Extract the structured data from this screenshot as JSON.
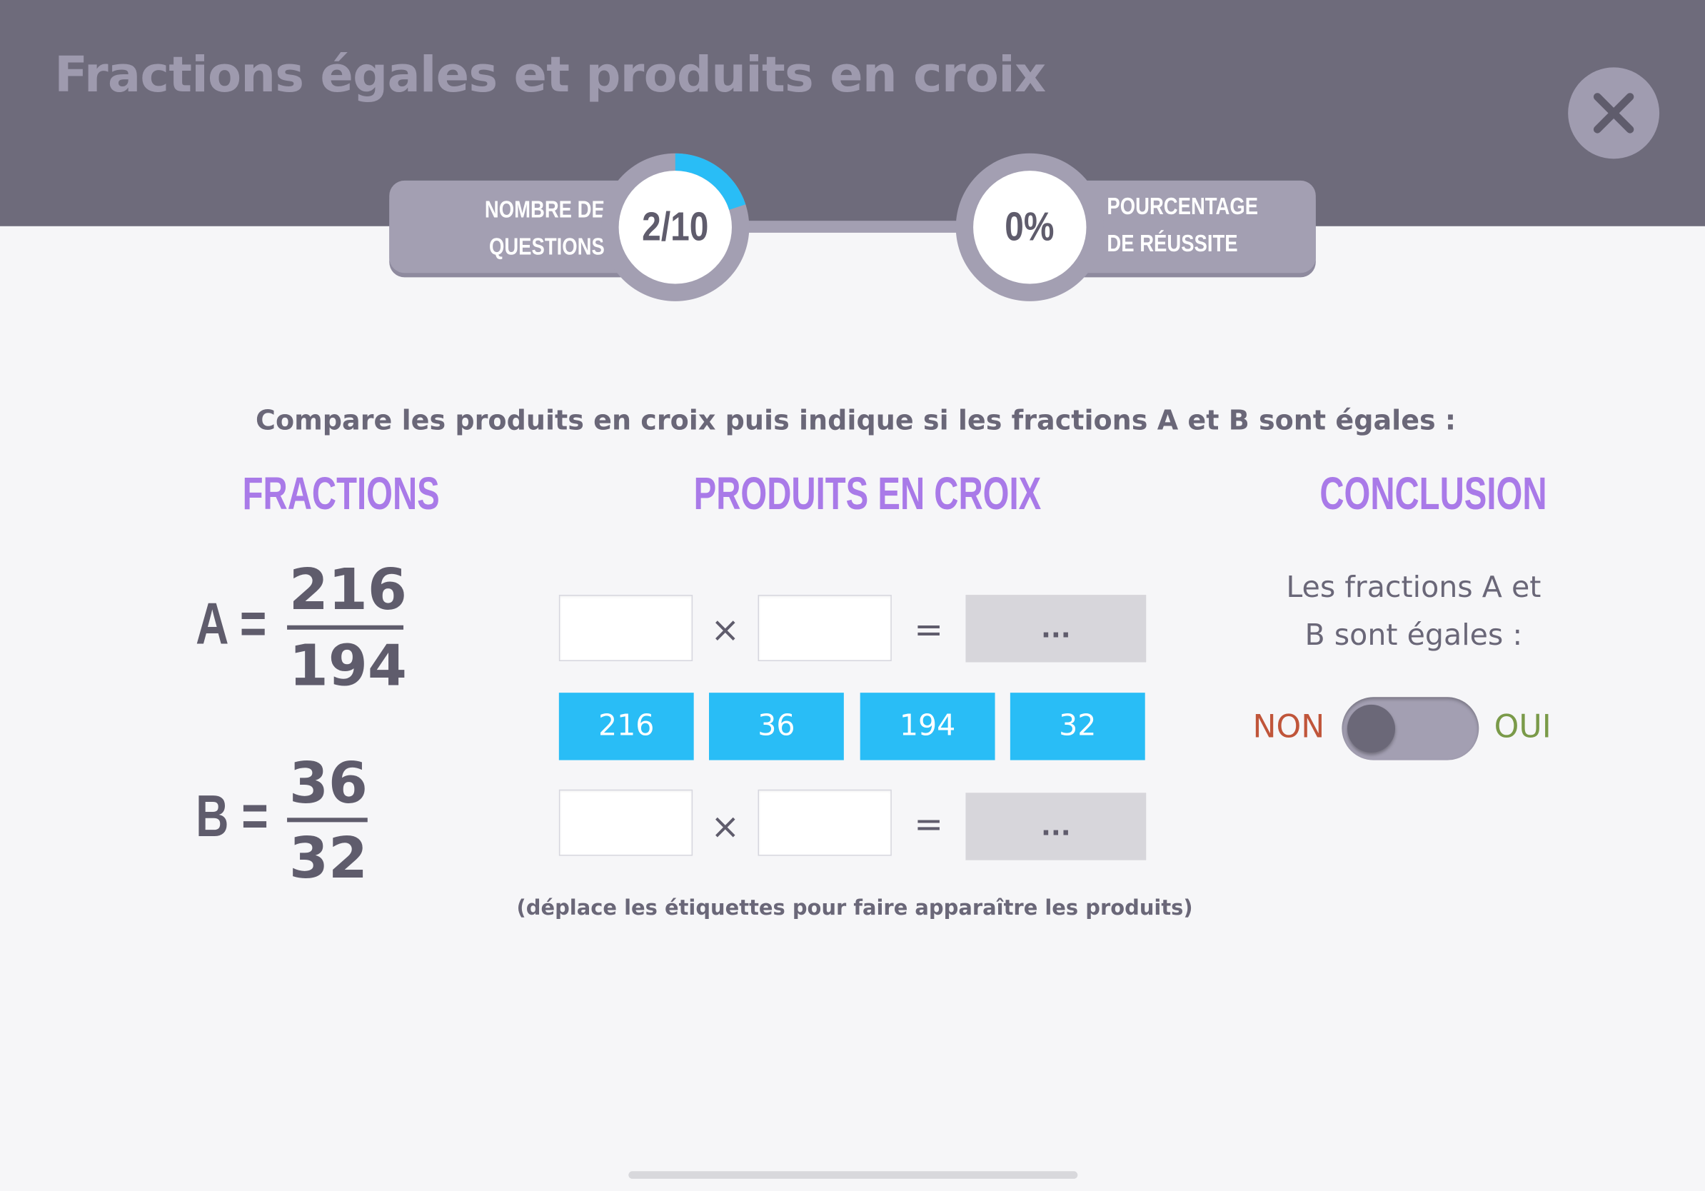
{
  "header": {
    "title": "Fractions égales et produits en croix",
    "close_icon": "close-icon"
  },
  "progress": {
    "questions_label_line1": "NOMBRE DE",
    "questions_label_line2": "QUESTIONS",
    "questions_value": "2/10",
    "questions_fraction": 0.2,
    "success_label_line1": "POURCENTAGE",
    "success_label_line2": "DE RÉUSSITE",
    "success_value": "0%"
  },
  "instruction": "Compare les produits en croix puis indique si les fractions A et B sont égales :",
  "columns": {
    "fractions": "FRACTIONS",
    "cross_products": "PRODUITS EN CROIX",
    "conclusion": "CONCLUSION"
  },
  "fractions": {
    "a": {
      "letter": "A",
      "equals": "=",
      "numerator": "216",
      "denominator": "194"
    },
    "b": {
      "letter": "B",
      "equals": "=",
      "numerator": "36",
      "denominator": "32"
    }
  },
  "cross_products": {
    "times_symbol": "×",
    "equals_symbol": "=",
    "result_placeholder": "...",
    "tiles": [
      "216",
      "36",
      "194",
      "32"
    ],
    "hint": "(déplace les étiquettes pour faire apparaître les produits)"
  },
  "conclusion": {
    "text_line1": "Les fractions A et",
    "text_line2": "B sont égales :",
    "no_label": "NON",
    "yes_label": "OUI",
    "toggle_state": "off"
  },
  "colors": {
    "header_bg": "#6e6b7b",
    "accent_purple": "#a97ae8",
    "tile_blue": "#29bdf6",
    "no_red": "#c0553a",
    "yes_green": "#7a9a49"
  }
}
